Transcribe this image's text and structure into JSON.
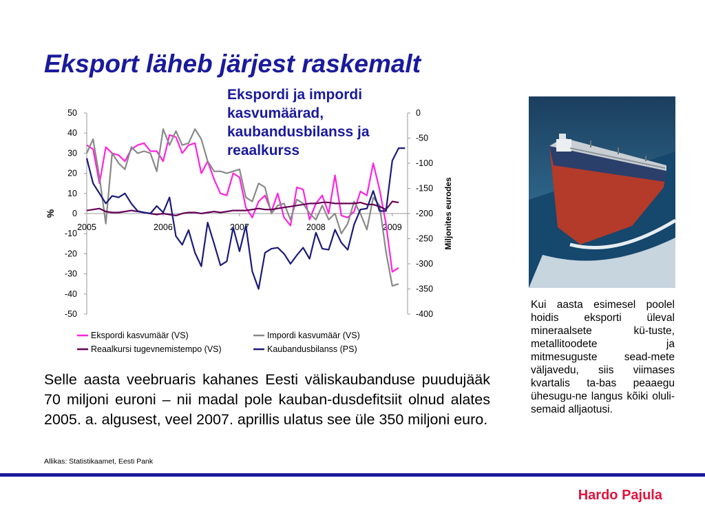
{
  "slide": {
    "title": "Eksport läheb järjest raskemalt",
    "chart_title": "Ekspordi ja impordi kasvumäärad, kaubandusbilanss ja reaalkurss",
    "side_text": "Kui aasta esimesel poolel hoidis eksporti üleval mineraalsete kü-tuste, metallitoodete ja mitmesuguste sead-mete väljavedu, siis viimases kvartalis ta-bas peaaegu ühesugu-ne langus kõiki oluli-semaid alljaotusi.",
    "body_text": "Selle aasta veebruaris kahanes Eesti väliskaubanduse puudujääk 70 miljoni euroni – nii madal pole kauban-dusdefitsiit olnud alates 2005. a. algusest, veel 2007. aprillis ulatus see üle 350 miljoni euro.",
    "source": "Allikas: Statistikaamet, Eesti Pank",
    "author": "Hardo Pajula",
    "colors": {
      "accent": "#1a1a9c",
      "author": "#e0143c"
    }
  },
  "chart_data": {
    "type": "line",
    "title": "Ekspordi ja impordi kasvumäärad, kaubandusbilanss ja reaalkurss",
    "ylabel_left": "%",
    "ylabel_right": "Miljonites eurodes",
    "ylim_left": [
      -50,
      50
    ],
    "ylim_right": [
      -400,
      0
    ],
    "yticks_left": [
      50,
      40,
      30,
      20,
      10,
      0,
      -10,
      -20,
      -30,
      -40,
      -50
    ],
    "yticks_right": [
      0,
      -50,
      -100,
      -150,
      -200,
      -250,
      -300,
      -350,
      -400
    ],
    "x_labels": [
      "2005",
      "2006",
      "2007",
      "2008",
      "2009"
    ],
    "x_range": [
      2005,
      2009.2
    ],
    "grid": false,
    "legend_position": "bottom",
    "series": [
      {
        "name": "Ekspordi kasvumäär (VS)",
        "axis": "left",
        "color": "#ff22dd",
        "x": [
          2005.0,
          2005.083,
          2005.167,
          2005.25,
          2005.333,
          2005.417,
          2005.5,
          2005.583,
          2005.667,
          2005.75,
          2005.833,
          2005.917,
          2006.0,
          2006.083,
          2006.167,
          2006.25,
          2006.333,
          2006.417,
          2006.5,
          2006.583,
          2006.667,
          2006.75,
          2006.833,
          2006.917,
          2007.0,
          2007.083,
          2007.167,
          2007.25,
          2007.333,
          2007.417,
          2007.5,
          2007.583,
          2007.667,
          2007.75,
          2007.833,
          2007.917,
          2008.0,
          2008.083,
          2008.167,
          2008.25,
          2008.333,
          2008.417,
          2008.5,
          2008.583,
          2008.667,
          2008.75,
          2008.833,
          2008.917,
          2009.0,
          2009.083
        ],
        "values": [
          34,
          32,
          15,
          33,
          30,
          29,
          26,
          32,
          34,
          35,
          31,
          31,
          26,
          39,
          38,
          30,
          34,
          35,
          20,
          26,
          17,
          10,
          9,
          20,
          18,
          3,
          -2,
          6,
          9,
          1,
          10,
          -2,
          -6,
          13,
          12,
          -3,
          5,
          9,
          0,
          19,
          -1,
          -2,
          1,
          11,
          9,
          25,
          12,
          -5,
          -29,
          -27
        ]
      },
      {
        "name": "Impordi kasvumäär (VS)",
        "axis": "left",
        "color": "#888888",
        "x": [
          2005.0,
          2005.083,
          2005.167,
          2005.25,
          2005.333,
          2005.417,
          2005.5,
          2005.583,
          2005.667,
          2005.75,
          2005.833,
          2005.917,
          2006.0,
          2006.083,
          2006.167,
          2006.25,
          2006.333,
          2006.417,
          2006.5,
          2006.583,
          2006.667,
          2006.75,
          2006.833,
          2006.917,
          2007.0,
          2007.083,
          2007.167,
          2007.25,
          2007.333,
          2007.417,
          2007.5,
          2007.583,
          2007.667,
          2007.75,
          2007.833,
          2007.917,
          2008.0,
          2008.083,
          2008.167,
          2008.25,
          2008.333,
          2008.417,
          2008.5,
          2008.583,
          2008.667,
          2008.75,
          2008.833,
          2008.917,
          2009.0,
          2009.083
        ],
        "values": [
          30,
          37,
          18,
          -5,
          30,
          25,
          22,
          33,
          30,
          31,
          30,
          21,
          42,
          34,
          41,
          34,
          35,
          42,
          37,
          26,
          21,
          21,
          20,
          21,
          22,
          8,
          6,
          15,
          13,
          0,
          4,
          5,
          -3,
          7,
          5,
          0,
          -3,
          4,
          -3,
          0,
          -10,
          -5,
          6,
          0,
          -8,
          8,
          4,
          -19,
          -36,
          -35
        ]
      },
      {
        "name": "Reaalkursi tugevnemistempo (VS)",
        "axis": "left",
        "color": "#660055",
        "x": [
          2005.0,
          2005.083,
          2005.167,
          2005.25,
          2005.333,
          2005.417,
          2005.5,
          2005.583,
          2005.667,
          2005.75,
          2005.833,
          2005.917,
          2006.0,
          2006.083,
          2006.167,
          2006.25,
          2006.333,
          2006.417,
          2006.5,
          2006.583,
          2006.667,
          2006.75,
          2006.833,
          2006.917,
          2007.0,
          2007.083,
          2007.167,
          2007.25,
          2007.333,
          2007.417,
          2007.5,
          2007.583,
          2007.667,
          2007.75,
          2007.833,
          2007.917,
          2008.0,
          2008.083,
          2008.167,
          2008.25,
          2008.333,
          2008.417,
          2008.5,
          2008.583,
          2008.667,
          2008.75,
          2008.833,
          2008.917,
          2009.0,
          2009.083
        ],
        "values": [
          1.5,
          2,
          2.5,
          1,
          0.5,
          0.5,
          1,
          1.5,
          1,
          0.5,
          0,
          -0.5,
          0,
          -0.5,
          -1,
          0,
          0.5,
          0.5,
          0,
          0.5,
          1,
          0.5,
          1,
          1.5,
          1.5,
          1.5,
          2,
          2.5,
          2,
          2,
          2.5,
          3,
          3.5,
          4,
          4.5,
          5,
          5,
          5.5,
          5.5,
          5,
          5,
          5,
          5,
          5.5,
          4.5,
          4.5,
          3.5,
          2,
          6,
          5.5
        ]
      },
      {
        "name": "Kaubandusbilanss (PS)",
        "axis": "right",
        "color": "#1a1a7a",
        "x": [
          2005.0,
          2005.083,
          2005.167,
          2005.25,
          2005.333,
          2005.417,
          2005.5,
          2005.583,
          2005.667,
          2005.75,
          2005.833,
          2005.917,
          2006.0,
          2006.083,
          2006.167,
          2006.25,
          2006.333,
          2006.417,
          2006.5,
          2006.583,
          2006.667,
          2006.75,
          2006.833,
          2006.917,
          2007.0,
          2007.083,
          2007.167,
          2007.25,
          2007.333,
          2007.417,
          2007.5,
          2007.583,
          2007.667,
          2007.75,
          2007.833,
          2007.917,
          2008.0,
          2008.083,
          2008.167,
          2008.25,
          2008.333,
          2008.417,
          2008.5,
          2008.583,
          2008.667,
          2008.75,
          2008.833,
          2008.917,
          2009.0,
          2009.083,
          2009.167
        ],
        "values": [
          -90,
          -140,
          -160,
          -180,
          -165,
          -168,
          -160,
          -180,
          -195,
          -198,
          -200,
          -185,
          -198,
          -168,
          -245,
          -262,
          -233,
          -278,
          -305,
          -218,
          -260,
          -303,
          -295,
          -228,
          -275,
          -224,
          -315,
          -350,
          -278,
          -270,
          -268,
          -280,
          -300,
          -283,
          -268,
          -290,
          -238,
          -270,
          -272,
          -232,
          -258,
          -272,
          -222,
          -192,
          -190,
          -155,
          -195,
          -195,
          -95,
          -70,
          -70
        ]
      }
    ]
  }
}
